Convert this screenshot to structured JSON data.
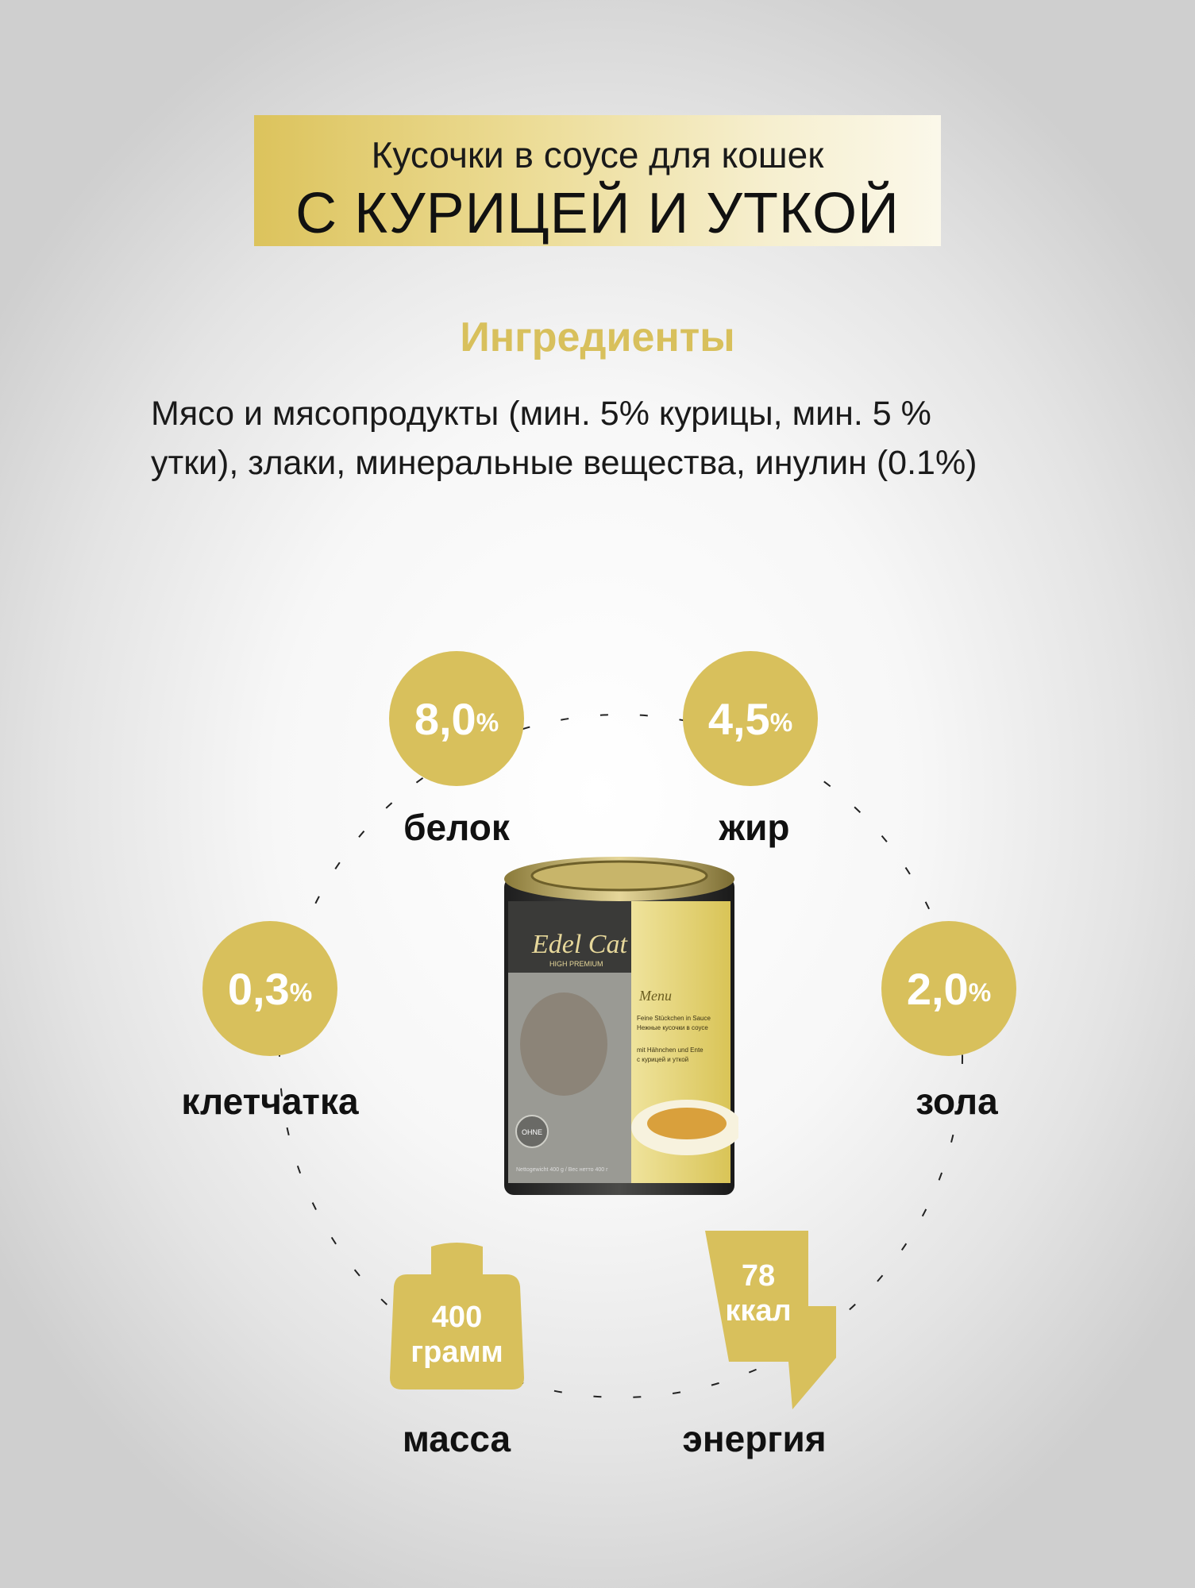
{
  "title": {
    "line1": "Кусочки в соусе для кошек",
    "line2": "С КУРИЦЕЙ И УТКОЙ"
  },
  "ingredients": {
    "heading": "Ингредиенты",
    "line1": "Мясо и мясопродукты (мин. 5% курицы, мин. 5 %",
    "line2": "утки), злаки, минеральные вещества, инулин (0.1%)"
  },
  "stats": {
    "protein": {
      "value": "8,0",
      "unit": "%",
      "label": "белок"
    },
    "fat": {
      "value": "4,5",
      "unit": "%",
      "label": "жир"
    },
    "fiber": {
      "value": "0,3",
      "unit": "%",
      "label": "клетчатка"
    },
    "ash": {
      "value": "2,0",
      "unit": "%",
      "label": "зола"
    },
    "mass": {
      "value": "400",
      "unit": "грамм",
      "label": "масса"
    },
    "energy": {
      "value": "78",
      "unit": "ккал",
      "label": "энергия"
    }
  },
  "product": {
    "brand": "Edel Cat",
    "tagline": "HIGH PREMIUM",
    "menu": "Menu",
    "desc_de": "Feine Stückchen in Sauce",
    "desc_ru": "Нежные кусочки в соусе",
    "flavor_de": "mit Hähnchen und Ente",
    "flavor_ru": "с курицей и уткой",
    "badge": "OHNE",
    "weight_note": "Nettogewicht 400 g / Вес нетто 400 г"
  },
  "colors": {
    "accent": "#d8c05c",
    "text": "#111111"
  }
}
